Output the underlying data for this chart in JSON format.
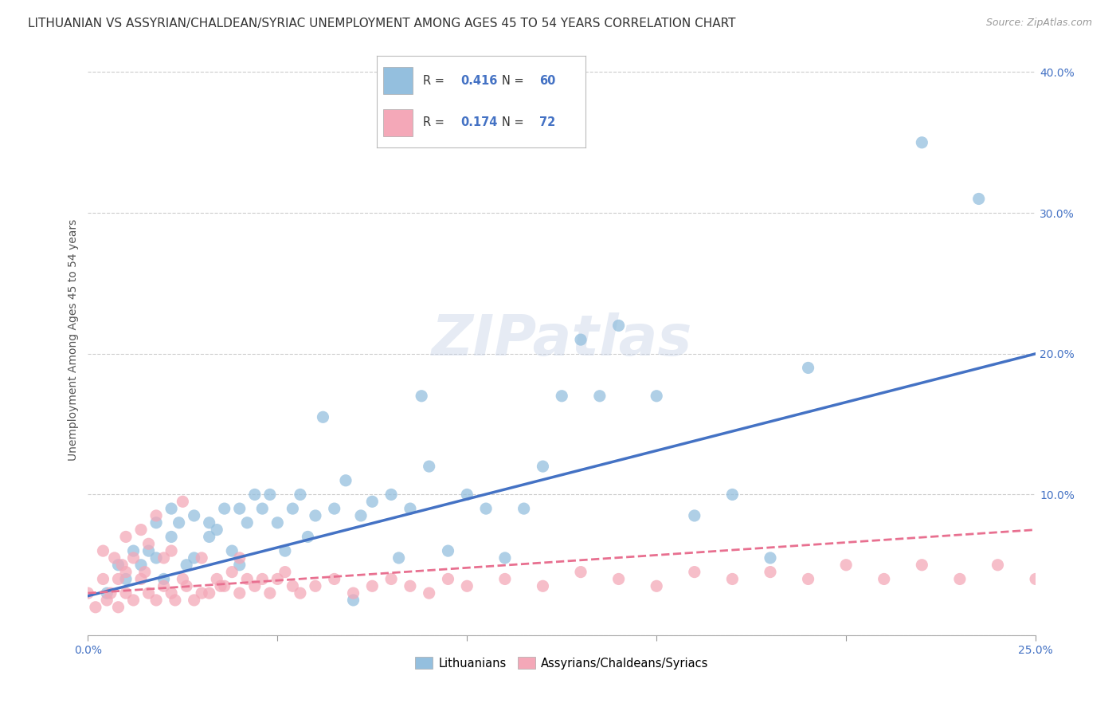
{
  "title": "LITHUANIAN VS ASSYRIAN/CHALDEAN/SYRIAC UNEMPLOYMENT AMONG AGES 45 TO 54 YEARS CORRELATION CHART",
  "source": "Source: ZipAtlas.com",
  "ylabel": "Unemployment Among Ages 45 to 54 years",
  "xlim": [
    0.0,
    0.25
  ],
  "ylim": [
    0.0,
    0.42
  ],
  "xticks": [
    0.0,
    0.05,
    0.1,
    0.15,
    0.2,
    0.25
  ],
  "xticklabels_show": [
    "0.0%",
    "",
    "",
    "",
    "",
    "25.0%"
  ],
  "yticks": [
    0.0,
    0.1,
    0.2,
    0.3,
    0.4
  ],
  "yticklabels": [
    "",
    "10.0%",
    "20.0%",
    "30.0%",
    "40.0%"
  ],
  "legend_labels": [
    "Lithuanians",
    "Assyrians/Chaldeans/Syriacs"
  ],
  "blue_color": "#94bfde",
  "pink_color": "#f4a8b8",
  "blue_line_color": "#4472c4",
  "pink_line_color": "#e87090",
  "watermark": "ZIPatlas",
  "R_blue": 0.416,
  "N_blue": 60,
  "R_pink": 0.174,
  "N_pink": 72,
  "blue_scatter_x": [
    0.005,
    0.008,
    0.01,
    0.012,
    0.014,
    0.016,
    0.018,
    0.018,
    0.02,
    0.022,
    0.022,
    0.024,
    0.026,
    0.028,
    0.028,
    0.032,
    0.032,
    0.034,
    0.036,
    0.038,
    0.04,
    0.04,
    0.042,
    0.044,
    0.046,
    0.048,
    0.05,
    0.052,
    0.054,
    0.056,
    0.058,
    0.06,
    0.062,
    0.065,
    0.068,
    0.07,
    0.072,
    0.075,
    0.08,
    0.082,
    0.085,
    0.088,
    0.09,
    0.095,
    0.1,
    0.105,
    0.11,
    0.115,
    0.12,
    0.125,
    0.13,
    0.135,
    0.14,
    0.15,
    0.16,
    0.17,
    0.18,
    0.19,
    0.22,
    0.235
  ],
  "blue_scatter_y": [
    0.03,
    0.05,
    0.04,
    0.06,
    0.05,
    0.06,
    0.055,
    0.08,
    0.04,
    0.07,
    0.09,
    0.08,
    0.05,
    0.055,
    0.085,
    0.07,
    0.08,
    0.075,
    0.09,
    0.06,
    0.05,
    0.09,
    0.08,
    0.1,
    0.09,
    0.1,
    0.08,
    0.06,
    0.09,
    0.1,
    0.07,
    0.085,
    0.155,
    0.09,
    0.11,
    0.025,
    0.085,
    0.095,
    0.1,
    0.055,
    0.09,
    0.17,
    0.12,
    0.06,
    0.1,
    0.09,
    0.055,
    0.09,
    0.12,
    0.17,
    0.21,
    0.17,
    0.22,
    0.17,
    0.085,
    0.1,
    0.055,
    0.19,
    0.35,
    0.31
  ],
  "pink_scatter_x": [
    0.0,
    0.002,
    0.004,
    0.004,
    0.005,
    0.006,
    0.007,
    0.008,
    0.008,
    0.009,
    0.01,
    0.01,
    0.01,
    0.012,
    0.012,
    0.014,
    0.014,
    0.015,
    0.016,
    0.016,
    0.018,
    0.018,
    0.02,
    0.02,
    0.022,
    0.022,
    0.023,
    0.025,
    0.025,
    0.026,
    0.028,
    0.03,
    0.03,
    0.032,
    0.034,
    0.035,
    0.036,
    0.038,
    0.04,
    0.04,
    0.042,
    0.044,
    0.046,
    0.048,
    0.05,
    0.052,
    0.054,
    0.056,
    0.06,
    0.065,
    0.07,
    0.075,
    0.08,
    0.085,
    0.09,
    0.095,
    0.1,
    0.11,
    0.12,
    0.13,
    0.14,
    0.15,
    0.16,
    0.17,
    0.18,
    0.19,
    0.2,
    0.21,
    0.22,
    0.23,
    0.24,
    0.25
  ],
  "pink_scatter_y": [
    0.03,
    0.02,
    0.04,
    0.06,
    0.025,
    0.03,
    0.055,
    0.02,
    0.04,
    0.05,
    0.03,
    0.045,
    0.07,
    0.025,
    0.055,
    0.04,
    0.075,
    0.045,
    0.03,
    0.065,
    0.025,
    0.085,
    0.035,
    0.055,
    0.03,
    0.06,
    0.025,
    0.04,
    0.095,
    0.035,
    0.025,
    0.03,
    0.055,
    0.03,
    0.04,
    0.035,
    0.035,
    0.045,
    0.03,
    0.055,
    0.04,
    0.035,
    0.04,
    0.03,
    0.04,
    0.045,
    0.035,
    0.03,
    0.035,
    0.04,
    0.03,
    0.035,
    0.04,
    0.035,
    0.03,
    0.04,
    0.035,
    0.04,
    0.035,
    0.045,
    0.04,
    0.035,
    0.045,
    0.04,
    0.045,
    0.04,
    0.05,
    0.04,
    0.05,
    0.04,
    0.05,
    0.04
  ],
  "blue_trend_x": [
    0.0,
    0.25
  ],
  "blue_trend_y": [
    0.028,
    0.2
  ],
  "pink_trend_x": [
    0.0,
    0.25
  ],
  "pink_trend_y": [
    0.03,
    0.075
  ],
  "background_color": "#ffffff",
  "grid_color": "#cccccc",
  "title_fontsize": 11,
  "axis_label_fontsize": 10,
  "tick_fontsize": 10,
  "legend_fontsize": 11,
  "watermark_fontsize": 52,
  "watermark_color": "#c8d4e8",
  "watermark_alpha": 0.45
}
